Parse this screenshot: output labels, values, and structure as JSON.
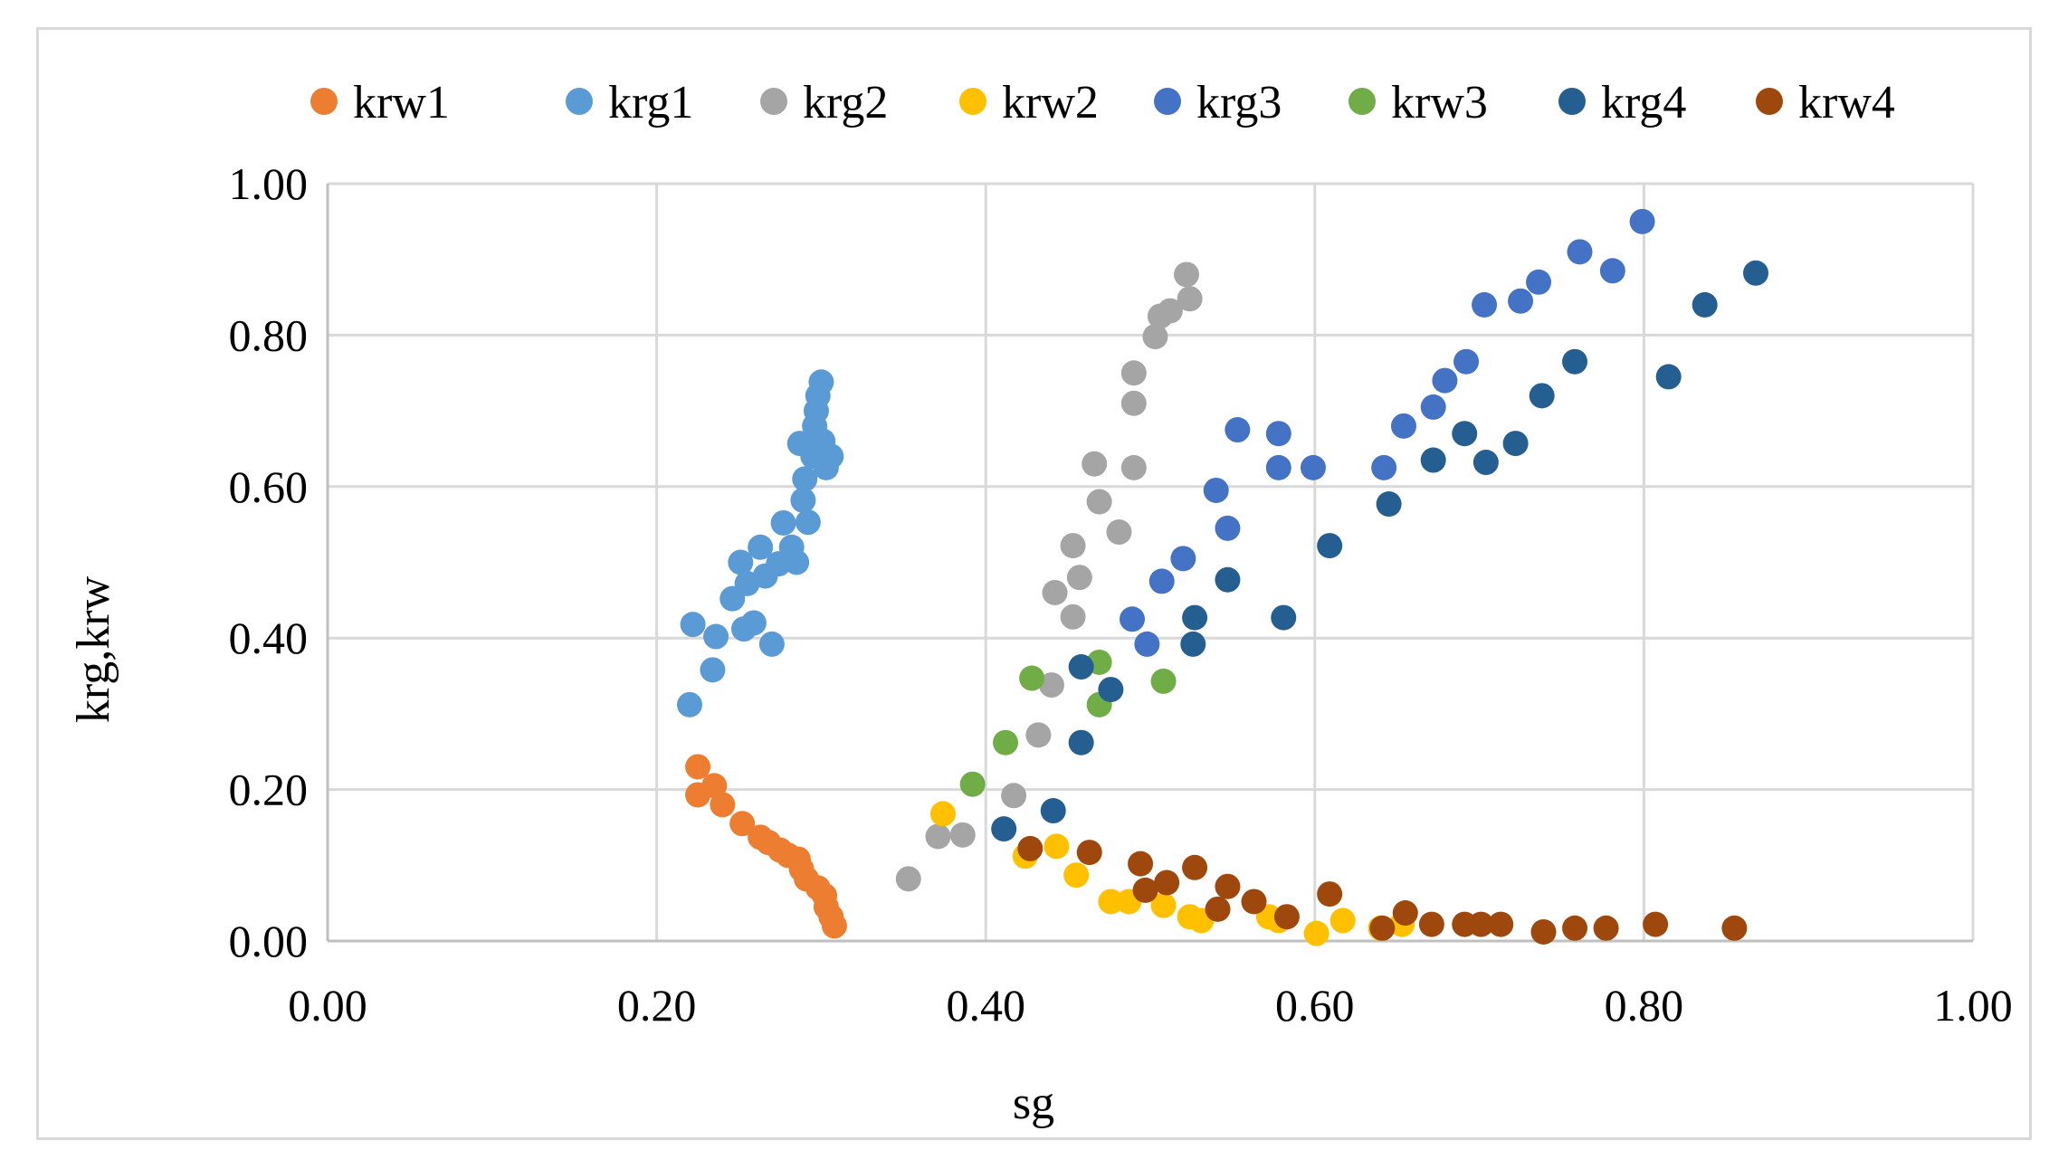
{
  "chart_data": {
    "type": "scatter",
    "title": "",
    "xlabel": "sg",
    "ylabel": "krg,krw",
    "xlim": [
      0,
      1
    ],
    "ylim": [
      0,
      1
    ],
    "x_ticks": [
      "0.00",
      "0.20",
      "0.40",
      "0.60",
      "0.80",
      "1.00"
    ],
    "y_ticks": [
      "0.00",
      "0.20",
      "0.40",
      "0.60",
      "0.80",
      "1.00"
    ],
    "x_tick_values": [
      0,
      0.2,
      0.4,
      0.6,
      0.8,
      1.0
    ],
    "y_tick_values": [
      0,
      0.2,
      0.4,
      0.6,
      0.8,
      1.0
    ],
    "grid": true,
    "legend_position": "top",
    "series": [
      {
        "name": "krw1",
        "color": "#ED7D31",
        "points": [
          [
            0.225,
            0.23
          ],
          [
            0.225,
            0.193
          ],
          [
            0.235,
            0.205
          ],
          [
            0.24,
            0.18
          ],
          [
            0.252,
            0.155
          ],
          [
            0.263,
            0.137
          ],
          [
            0.268,
            0.13
          ],
          [
            0.275,
            0.12
          ],
          [
            0.28,
            0.113
          ],
          [
            0.286,
            0.108
          ],
          [
            0.288,
            0.095
          ],
          [
            0.291,
            0.082
          ],
          [
            0.298,
            0.07
          ],
          [
            0.302,
            0.06
          ],
          [
            0.303,
            0.045
          ],
          [
            0.306,
            0.032
          ],
          [
            0.308,
            0.02
          ]
        ]
      },
      {
        "name": "krg1",
        "color": "#5B9BD5",
        "points": [
          [
            0.22,
            0.312
          ],
          [
            0.222,
            0.418
          ],
          [
            0.234,
            0.358
          ],
          [
            0.236,
            0.402
          ],
          [
            0.246,
            0.452
          ],
          [
            0.251,
            0.5
          ],
          [
            0.253,
            0.412
          ],
          [
            0.255,
            0.472
          ],
          [
            0.259,
            0.42
          ],
          [
            0.263,
            0.52
          ],
          [
            0.266,
            0.482
          ],
          [
            0.27,
            0.392
          ],
          [
            0.274,
            0.498
          ],
          [
            0.277,
            0.552
          ],
          [
            0.282,
            0.52
          ],
          [
            0.285,
            0.5
          ],
          [
            0.287,
            0.657
          ],
          [
            0.289,
            0.582
          ],
          [
            0.29,
            0.61
          ],
          [
            0.292,
            0.553
          ],
          [
            0.295,
            0.64
          ],
          [
            0.296,
            0.68
          ],
          [
            0.297,
            0.7
          ],
          [
            0.298,
            0.72
          ],
          [
            0.3,
            0.738
          ],
          [
            0.301,
            0.66
          ],
          [
            0.303,
            0.625
          ],
          [
            0.306,
            0.64
          ]
        ]
      },
      {
        "name": "krg2",
        "color": "#A5A5A5",
        "points": [
          [
            0.353,
            0.082
          ],
          [
            0.371,
            0.138
          ],
          [
            0.386,
            0.14
          ],
          [
            0.417,
            0.192
          ],
          [
            0.432,
            0.272
          ],
          [
            0.44,
            0.338
          ],
          [
            0.442,
            0.46
          ],
          [
            0.453,
            0.428
          ],
          [
            0.453,
            0.522
          ],
          [
            0.457,
            0.48
          ],
          [
            0.466,
            0.63
          ],
          [
            0.469,
            0.58
          ],
          [
            0.481,
            0.54
          ],
          [
            0.49,
            0.71
          ],
          [
            0.49,
            0.75
          ],
          [
            0.49,
            0.625
          ],
          [
            0.503,
            0.798
          ],
          [
            0.506,
            0.825
          ],
          [
            0.512,
            0.832
          ],
          [
            0.522,
            0.88
          ],
          [
            0.524,
            0.848
          ]
        ]
      },
      {
        "name": "krw2",
        "color": "#FFC000",
        "points": [
          [
            0.374,
            0.168
          ],
          [
            0.424,
            0.112
          ],
          [
            0.443,
            0.125
          ],
          [
            0.455,
            0.087
          ],
          [
            0.476,
            0.052
          ],
          [
            0.487,
            0.052
          ],
          [
            0.508,
            0.047
          ],
          [
            0.524,
            0.032
          ],
          [
            0.531,
            0.027
          ],
          [
            0.572,
            0.032
          ],
          [
            0.578,
            0.027
          ],
          [
            0.601,
            0.01
          ],
          [
            0.617,
            0.027
          ],
          [
            0.64,
            0.017
          ],
          [
            0.653,
            0.022
          ]
        ]
      },
      {
        "name": "krg3",
        "color": "#4472C4",
        "points": [
          [
            0.489,
            0.425
          ],
          [
            0.498,
            0.392
          ],
          [
            0.507,
            0.475
          ],
          [
            0.52,
            0.505
          ],
          [
            0.54,
            0.595
          ],
          [
            0.547,
            0.545
          ],
          [
            0.553,
            0.675
          ],
          [
            0.578,
            0.625
          ],
          [
            0.578,
            0.67
          ],
          [
            0.599,
            0.625
          ],
          [
            0.642,
            0.625
          ],
          [
            0.654,
            0.68
          ],
          [
            0.672,
            0.705
          ],
          [
            0.679,
            0.74
          ],
          [
            0.692,
            0.765
          ],
          [
            0.703,
            0.84
          ],
          [
            0.725,
            0.845
          ],
          [
            0.736,
            0.87
          ],
          [
            0.761,
            0.91
          ],
          [
            0.781,
            0.885
          ],
          [
            0.799,
            0.95
          ]
        ]
      },
      {
        "name": "krw3",
        "color": "#70AD47",
        "points": [
          [
            0.392,
            0.207
          ],
          [
            0.412,
            0.262
          ],
          [
            0.428,
            0.347
          ],
          [
            0.469,
            0.368
          ],
          [
            0.469,
            0.312
          ],
          [
            0.508,
            0.343
          ]
        ]
      },
      {
        "name": "krg4",
        "color": "#255E91",
        "points": [
          [
            0.411,
            0.148
          ],
          [
            0.441,
            0.172
          ],
          [
            0.458,
            0.262
          ],
          [
            0.458,
            0.362
          ],
          [
            0.476,
            0.332
          ],
          [
            0.526,
            0.392
          ],
          [
            0.527,
            0.427
          ],
          [
            0.547,
            0.477
          ],
          [
            0.581,
            0.427
          ],
          [
            0.609,
            0.522
          ],
          [
            0.645,
            0.577
          ],
          [
            0.672,
            0.635
          ],
          [
            0.691,
            0.67
          ],
          [
            0.704,
            0.632
          ],
          [
            0.722,
            0.657
          ],
          [
            0.738,
            0.72
          ],
          [
            0.758,
            0.765
          ],
          [
            0.815,
            0.745
          ],
          [
            0.837,
            0.84
          ],
          [
            0.868,
            0.882
          ]
        ]
      },
      {
        "name": "krw4",
        "color": "#9E480E",
        "points": [
          [
            0.427,
            0.122
          ],
          [
            0.463,
            0.117
          ],
          [
            0.494,
            0.102
          ],
          [
            0.497,
            0.067
          ],
          [
            0.51,
            0.077
          ],
          [
            0.527,
            0.097
          ],
          [
            0.541,
            0.042
          ],
          [
            0.547,
            0.072
          ],
          [
            0.563,
            0.052
          ],
          [
            0.583,
            0.032
          ],
          [
            0.609,
            0.062
          ],
          [
            0.641,
            0.017
          ],
          [
            0.655,
            0.037
          ],
          [
            0.671,
            0.022
          ],
          [
            0.691,
            0.022
          ],
          [
            0.701,
            0.022
          ],
          [
            0.713,
            0.022
          ],
          [
            0.739,
            0.012
          ],
          [
            0.758,
            0.017
          ],
          [
            0.777,
            0.017
          ],
          [
            0.807,
            0.022
          ],
          [
            0.855,
            0.017
          ]
        ]
      }
    ]
  }
}
